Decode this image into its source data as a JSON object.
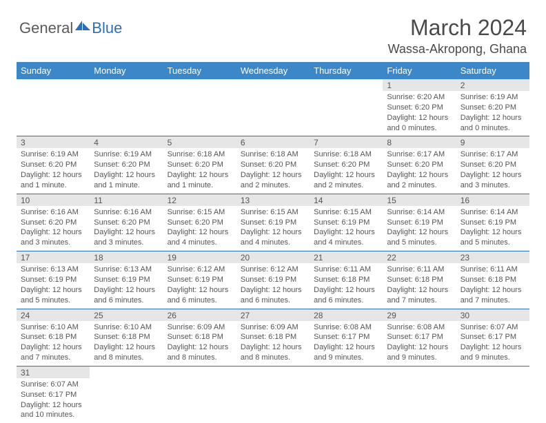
{
  "logo": {
    "general": "General",
    "blue": "Blue"
  },
  "title": "March 2024",
  "location": "Wassa-Akropong, Ghana",
  "colors": {
    "header_bg": "#3b87c8",
    "header_text": "#ffffff",
    "daynum_bg": "#e6e6e6",
    "border": "#2c6fb5",
    "text": "#555555",
    "logo_blue": "#2c6fb5"
  },
  "weekdays": [
    "Sunday",
    "Monday",
    "Tuesday",
    "Wednesday",
    "Thursday",
    "Friday",
    "Saturday"
  ],
  "weeks": [
    [
      {
        "day": "",
        "sunrise": "",
        "sunset": "",
        "daylight": ""
      },
      {
        "day": "",
        "sunrise": "",
        "sunset": "",
        "daylight": ""
      },
      {
        "day": "",
        "sunrise": "",
        "sunset": "",
        "daylight": ""
      },
      {
        "day": "",
        "sunrise": "",
        "sunset": "",
        "daylight": ""
      },
      {
        "day": "",
        "sunrise": "",
        "sunset": "",
        "daylight": ""
      },
      {
        "day": "1",
        "sunrise": "Sunrise: 6:20 AM",
        "sunset": "Sunset: 6:20 PM",
        "daylight": "Daylight: 12 hours and 0 minutes."
      },
      {
        "day": "2",
        "sunrise": "Sunrise: 6:19 AM",
        "sunset": "Sunset: 6:20 PM",
        "daylight": "Daylight: 12 hours and 0 minutes."
      }
    ],
    [
      {
        "day": "3",
        "sunrise": "Sunrise: 6:19 AM",
        "sunset": "Sunset: 6:20 PM",
        "daylight": "Daylight: 12 hours and 1 minute."
      },
      {
        "day": "4",
        "sunrise": "Sunrise: 6:19 AM",
        "sunset": "Sunset: 6:20 PM",
        "daylight": "Daylight: 12 hours and 1 minute."
      },
      {
        "day": "5",
        "sunrise": "Sunrise: 6:18 AM",
        "sunset": "Sunset: 6:20 PM",
        "daylight": "Daylight: 12 hours and 1 minute."
      },
      {
        "day": "6",
        "sunrise": "Sunrise: 6:18 AM",
        "sunset": "Sunset: 6:20 PM",
        "daylight": "Daylight: 12 hours and 2 minutes."
      },
      {
        "day": "7",
        "sunrise": "Sunrise: 6:18 AM",
        "sunset": "Sunset: 6:20 PM",
        "daylight": "Daylight: 12 hours and 2 minutes."
      },
      {
        "day": "8",
        "sunrise": "Sunrise: 6:17 AM",
        "sunset": "Sunset: 6:20 PM",
        "daylight": "Daylight: 12 hours and 2 minutes."
      },
      {
        "day": "9",
        "sunrise": "Sunrise: 6:17 AM",
        "sunset": "Sunset: 6:20 PM",
        "daylight": "Daylight: 12 hours and 3 minutes."
      }
    ],
    [
      {
        "day": "10",
        "sunrise": "Sunrise: 6:16 AM",
        "sunset": "Sunset: 6:20 PM",
        "daylight": "Daylight: 12 hours and 3 minutes."
      },
      {
        "day": "11",
        "sunrise": "Sunrise: 6:16 AM",
        "sunset": "Sunset: 6:20 PM",
        "daylight": "Daylight: 12 hours and 3 minutes."
      },
      {
        "day": "12",
        "sunrise": "Sunrise: 6:15 AM",
        "sunset": "Sunset: 6:20 PM",
        "daylight": "Daylight: 12 hours and 4 minutes."
      },
      {
        "day": "13",
        "sunrise": "Sunrise: 6:15 AM",
        "sunset": "Sunset: 6:19 PM",
        "daylight": "Daylight: 12 hours and 4 minutes."
      },
      {
        "day": "14",
        "sunrise": "Sunrise: 6:15 AM",
        "sunset": "Sunset: 6:19 PM",
        "daylight": "Daylight: 12 hours and 4 minutes."
      },
      {
        "day": "15",
        "sunrise": "Sunrise: 6:14 AM",
        "sunset": "Sunset: 6:19 PM",
        "daylight": "Daylight: 12 hours and 5 minutes."
      },
      {
        "day": "16",
        "sunrise": "Sunrise: 6:14 AM",
        "sunset": "Sunset: 6:19 PM",
        "daylight": "Daylight: 12 hours and 5 minutes."
      }
    ],
    [
      {
        "day": "17",
        "sunrise": "Sunrise: 6:13 AM",
        "sunset": "Sunset: 6:19 PM",
        "daylight": "Daylight: 12 hours and 5 minutes."
      },
      {
        "day": "18",
        "sunrise": "Sunrise: 6:13 AM",
        "sunset": "Sunset: 6:19 PM",
        "daylight": "Daylight: 12 hours and 6 minutes."
      },
      {
        "day": "19",
        "sunrise": "Sunrise: 6:12 AM",
        "sunset": "Sunset: 6:19 PM",
        "daylight": "Daylight: 12 hours and 6 minutes."
      },
      {
        "day": "20",
        "sunrise": "Sunrise: 6:12 AM",
        "sunset": "Sunset: 6:19 PM",
        "daylight": "Daylight: 12 hours and 6 minutes."
      },
      {
        "day": "21",
        "sunrise": "Sunrise: 6:11 AM",
        "sunset": "Sunset: 6:18 PM",
        "daylight": "Daylight: 12 hours and 6 minutes."
      },
      {
        "day": "22",
        "sunrise": "Sunrise: 6:11 AM",
        "sunset": "Sunset: 6:18 PM",
        "daylight": "Daylight: 12 hours and 7 minutes."
      },
      {
        "day": "23",
        "sunrise": "Sunrise: 6:11 AM",
        "sunset": "Sunset: 6:18 PM",
        "daylight": "Daylight: 12 hours and 7 minutes."
      }
    ],
    [
      {
        "day": "24",
        "sunrise": "Sunrise: 6:10 AM",
        "sunset": "Sunset: 6:18 PM",
        "daylight": "Daylight: 12 hours and 7 minutes."
      },
      {
        "day": "25",
        "sunrise": "Sunrise: 6:10 AM",
        "sunset": "Sunset: 6:18 PM",
        "daylight": "Daylight: 12 hours and 8 minutes."
      },
      {
        "day": "26",
        "sunrise": "Sunrise: 6:09 AM",
        "sunset": "Sunset: 6:18 PM",
        "daylight": "Daylight: 12 hours and 8 minutes."
      },
      {
        "day": "27",
        "sunrise": "Sunrise: 6:09 AM",
        "sunset": "Sunset: 6:18 PM",
        "daylight": "Daylight: 12 hours and 8 minutes."
      },
      {
        "day": "28",
        "sunrise": "Sunrise: 6:08 AM",
        "sunset": "Sunset: 6:17 PM",
        "daylight": "Daylight: 12 hours and 9 minutes."
      },
      {
        "day": "29",
        "sunrise": "Sunrise: 6:08 AM",
        "sunset": "Sunset: 6:17 PM",
        "daylight": "Daylight: 12 hours and 9 minutes."
      },
      {
        "day": "30",
        "sunrise": "Sunrise: 6:07 AM",
        "sunset": "Sunset: 6:17 PM",
        "daylight": "Daylight: 12 hours and 9 minutes."
      }
    ],
    [
      {
        "day": "31",
        "sunrise": "Sunrise: 6:07 AM",
        "sunset": "Sunset: 6:17 PM",
        "daylight": "Daylight: 12 hours and 10 minutes."
      },
      {
        "day": "",
        "sunrise": "",
        "sunset": "",
        "daylight": ""
      },
      {
        "day": "",
        "sunrise": "",
        "sunset": "",
        "daylight": ""
      },
      {
        "day": "",
        "sunrise": "",
        "sunset": "",
        "daylight": ""
      },
      {
        "day": "",
        "sunrise": "",
        "sunset": "",
        "daylight": ""
      },
      {
        "day": "",
        "sunrise": "",
        "sunset": "",
        "daylight": ""
      },
      {
        "day": "",
        "sunrise": "",
        "sunset": "",
        "daylight": ""
      }
    ]
  ]
}
